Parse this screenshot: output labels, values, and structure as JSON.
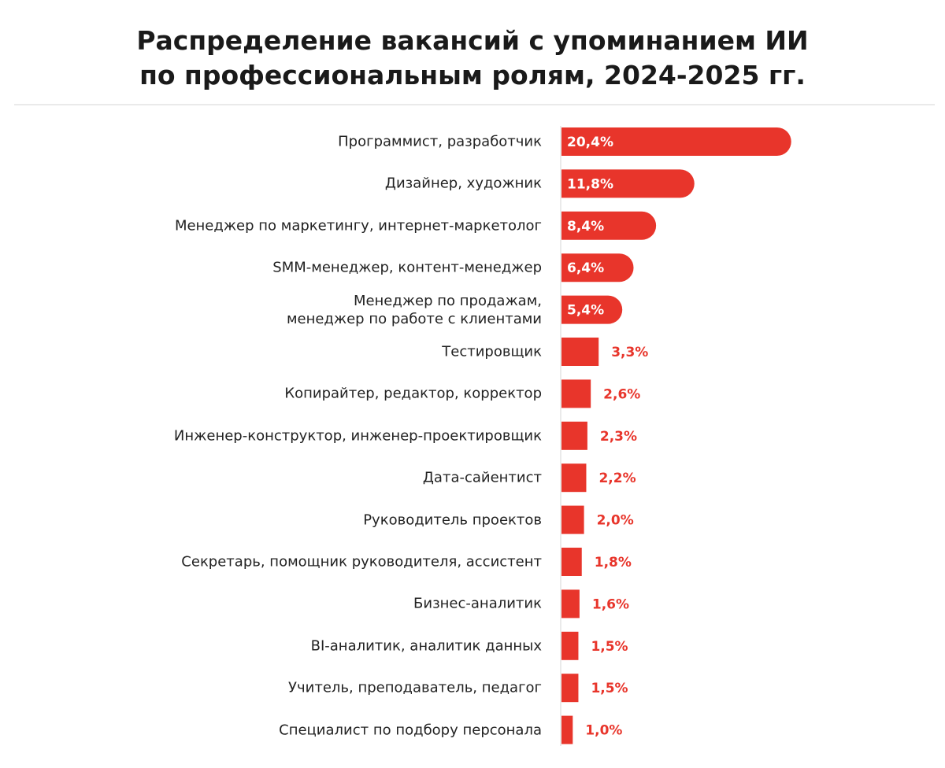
{
  "chart_data": {
    "type": "bar",
    "orientation": "horizontal",
    "title": "Распределение вакансий с упоминанием ИИ по профессиональным ролям, 2024-2025 гг.",
    "categories": [
      "Программист, разработчик",
      "Дизайнер, художник",
      "Менеджер по маркетингу, интернет-маркетолог",
      "SMM-менеджер, контент-менеджер",
      "Менеджер по продажам,\nменеджер по работе с клиентами",
      "Тестировщик",
      "Копирайтер, редактор, корректор",
      "Инженер-конструктор, инженер-проектировщик",
      "Дата-сайентист",
      "Руководитель проектов",
      "Секретарь, помощник руководителя, ассистент",
      "Бизнес-аналитик",
      "BI-аналитик, аналитик данных",
      "Учитель, преподаватель, педагог",
      "Специалист по подбору персонала"
    ],
    "values": [
      20.4,
      11.8,
      8.4,
      6.4,
      5.4,
      3.3,
      2.6,
      2.3,
      2.2,
      2.0,
      1.8,
      1.6,
      1.5,
      1.5,
      1.0
    ],
    "value_labels": [
      "20,4%",
      "11,8%",
      "8,4%",
      "6,4%",
      "5,4%",
      "3,3%",
      "2,6%",
      "2,3%",
      "2,2%",
      "2,0%",
      "1,8%",
      "1,6%",
      "1,5%",
      "1,5%",
      "1,0%"
    ],
    "color": "#e8352b"
  }
}
